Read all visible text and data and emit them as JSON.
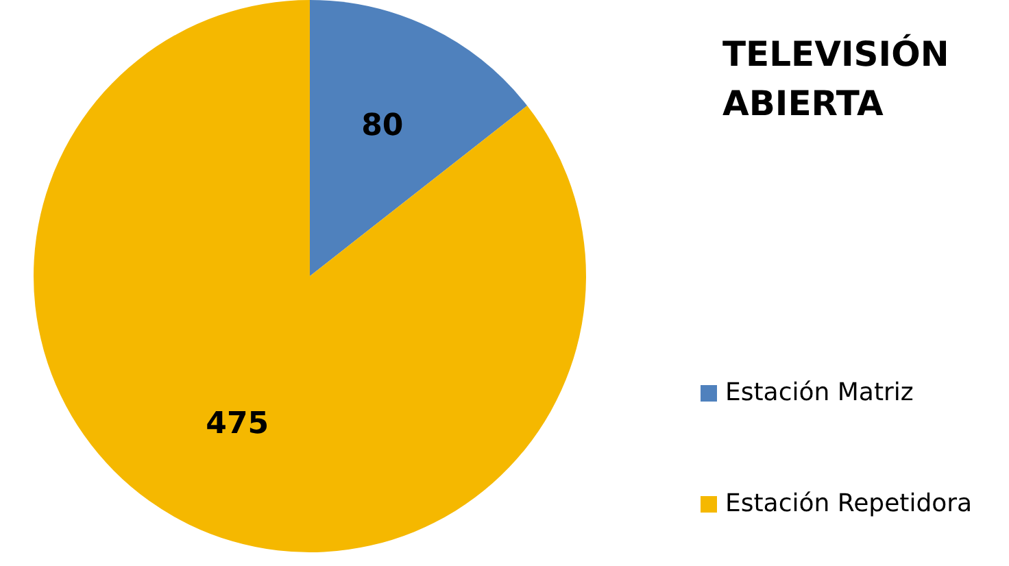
{
  "chart_data": {
    "type": "pie",
    "title": "TELEVISIÓN ABIERTA",
    "categories": [
      "Estación Matriz",
      "Estación Repetidora"
    ],
    "values": [
      80,
      475
    ],
    "colors": [
      "#4f81bd",
      "#f5b800"
    ],
    "data_labels": true,
    "legend": "right"
  }
}
